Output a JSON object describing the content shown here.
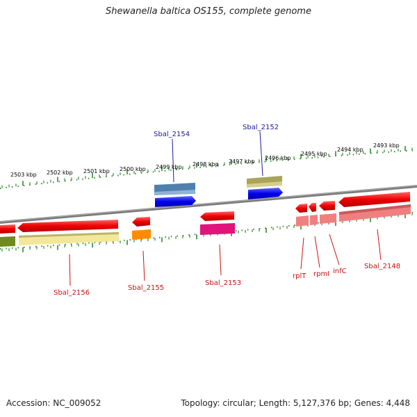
{
  "title": "Shewanella baltica OS155, complete genome",
  "footer": {
    "accession": "Accession: NC_009052",
    "summary": "Topology: circular; Length: 5,127,376 bp; Genes: 4,448"
  },
  "ruler_labels": [
    "2503 kbp",
    "2502 kbp",
    "2501 kbp",
    "2500 kbp",
    "2499 kbp",
    "2498 kbp",
    "2497 kbp",
    "2496 kbp",
    "2495 kbp",
    "2494 kbp",
    "2493 kbp"
  ],
  "genes_top": [
    {
      "name": "Sbal_2154",
      "color": "#1a1aa0"
    },
    {
      "name": "Sbal_2152",
      "color": "#1a1aa0"
    }
  ],
  "genes_bottom": [
    {
      "name": "Sbal_2156",
      "color": "#cc1111"
    },
    {
      "name": "Sbal_2155",
      "color": "#cc1111"
    },
    {
      "name": "Sbal_2153",
      "color": "#cc1111"
    },
    {
      "name": "rplT",
      "color": "#cc1111"
    },
    {
      "name": "rpmI",
      "color": "#cc1111"
    },
    {
      "name": "infC",
      "color": "#cc1111"
    },
    {
      "name": "Sbal_2148",
      "color": "#cc1111"
    }
  ],
  "colors": {
    "backbone": "#808080",
    "ruler": "#2e8b2e",
    "forward_cds": "#0000ee",
    "reverse_cds": "#ee0000"
  }
}
